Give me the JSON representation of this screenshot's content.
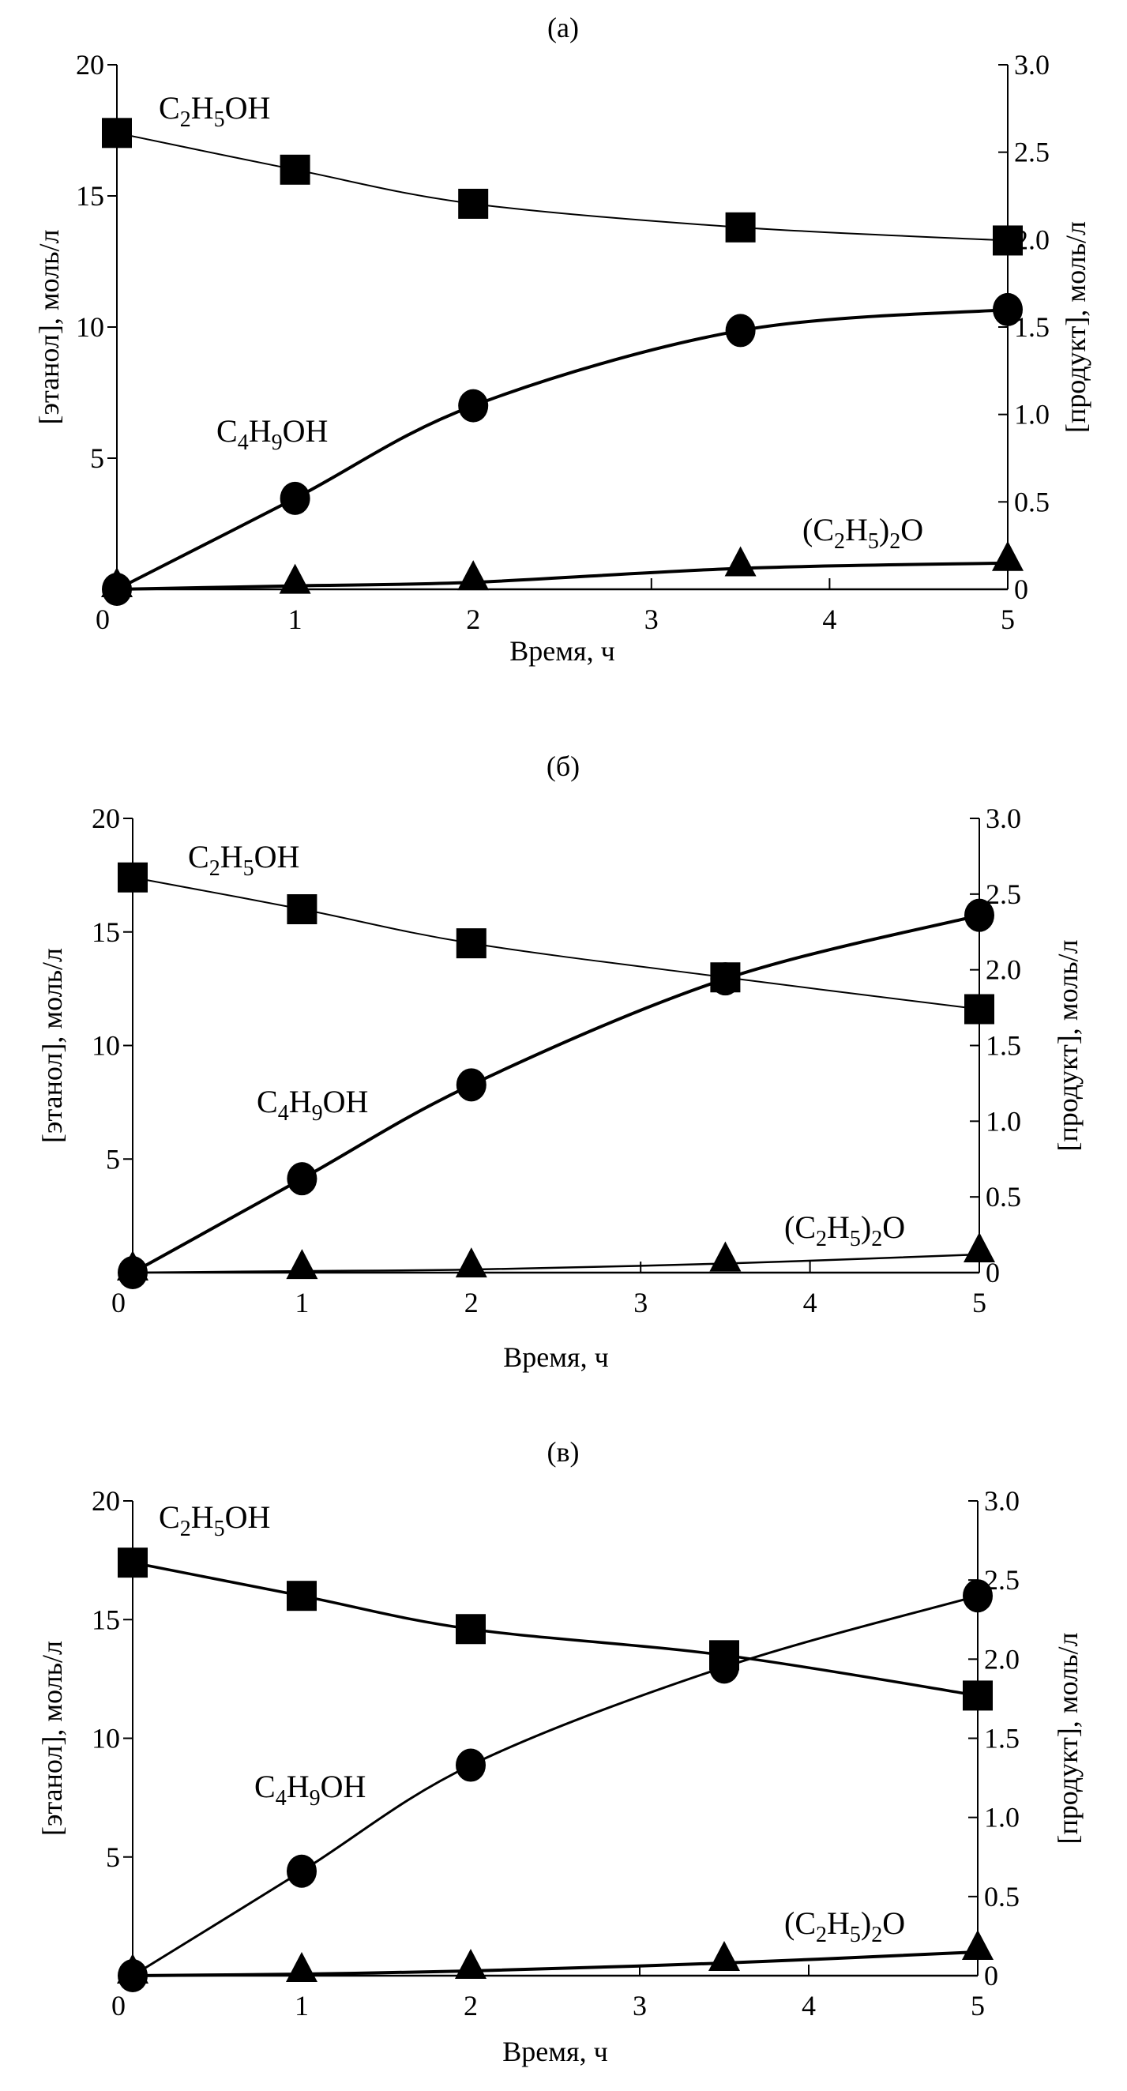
{
  "chart_data": [
    {
      "type": "line",
      "title": "(а)",
      "xlabel": "Время, ч",
      "ylabel_left": "[этанол], моль/л",
      "ylabel_right": "[продукт], моль/л",
      "xlim": [
        0,
        5
      ],
      "ylim_left": [
        0,
        20
      ],
      "ylim_right": [
        0,
        3.0
      ],
      "x_ticks": [
        "0",
        "1",
        "2",
        "3",
        "4",
        "5"
      ],
      "y_left_ticks": [
        "5",
        "10",
        "15",
        "20"
      ],
      "y_right_ticks": [
        "0",
        "0.5",
        "1.0",
        "1.5",
        "2.0",
        "2.5",
        "3.0"
      ],
      "grid": false,
      "x": [
        0,
        1,
        2,
        3.5,
        5
      ],
      "series": [
        {
          "name": "C2H5OH",
          "axis": "left",
          "marker": "square",
          "values": [
            17.4,
            16.0,
            14.7,
            13.8,
            13.3
          ]
        },
        {
          "name": "C4H9OH",
          "axis": "right",
          "marker": "circle",
          "values": [
            0.0,
            0.52,
            1.05,
            1.48,
            1.6
          ]
        },
        {
          "name": "(C2H5)2O",
          "axis": "right",
          "marker": "triangle",
          "values": [
            0.0,
            0.02,
            0.04,
            0.12,
            0.15
          ]
        }
      ]
    },
    {
      "type": "line",
      "title": "(б)",
      "xlabel": "Время, ч",
      "ylabel_left": "[этанол], моль/л",
      "ylabel_right": "[продукт], моль/л",
      "xlim": [
        0,
        5
      ],
      "ylim_left": [
        0,
        20
      ],
      "ylim_right": [
        0,
        3.0
      ],
      "x_ticks": [
        "0",
        "1",
        "2",
        "3",
        "4",
        "5"
      ],
      "y_left_ticks": [
        "5",
        "10",
        "15",
        "20"
      ],
      "y_right_ticks": [
        "0",
        "0.5",
        "1.0",
        "1.5",
        "2.0",
        "2.5",
        "3.0"
      ],
      "grid": false,
      "x": [
        0,
        1,
        2,
        3.5,
        5
      ],
      "series": [
        {
          "name": "C2H5OH",
          "axis": "left",
          "marker": "square",
          "values": [
            17.4,
            16.0,
            14.5,
            13.0,
            11.6
          ]
        },
        {
          "name": "C4H9OH",
          "axis": "right",
          "marker": "circle",
          "values": [
            0.0,
            0.62,
            1.24,
            1.94,
            2.36
          ]
        },
        {
          "name": "(C2H5)2O",
          "axis": "right",
          "marker": "triangle",
          "values": [
            0.0,
            0.01,
            0.02,
            0.06,
            0.12
          ]
        }
      ]
    },
    {
      "type": "line",
      "title": "(в)",
      "xlabel": "Время, ч",
      "ylabel_left": "[этанол], моль/л",
      "ylabel_right": "[продукт], моль/л",
      "xlim": [
        0,
        5
      ],
      "ylim_left": [
        0,
        20
      ],
      "ylim_right": [
        0,
        3.0
      ],
      "x_ticks": [
        "0",
        "1",
        "2",
        "3",
        "4",
        "5"
      ],
      "y_left_ticks": [
        "5",
        "10",
        "15",
        "20"
      ],
      "y_right_ticks": [
        "0",
        "0.5",
        "1.0",
        "1.5",
        "2.0",
        "2.5",
        "3.0"
      ],
      "grid": false,
      "x": [
        0,
        1,
        2,
        3.5,
        5
      ],
      "series": [
        {
          "name": "C2H5OH",
          "axis": "left",
          "marker": "square",
          "values": [
            17.4,
            16.0,
            14.6,
            13.5,
            11.8
          ]
        },
        {
          "name": "C4H9OH",
          "axis": "right",
          "marker": "circle",
          "values": [
            0.0,
            0.66,
            1.33,
            1.95,
            2.4
          ]
        },
        {
          "name": "(C2H5)2O",
          "axis": "right",
          "marker": "triangle",
          "values": [
            0.0,
            0.01,
            0.03,
            0.08,
            0.15
          ]
        }
      ]
    }
  ]
}
